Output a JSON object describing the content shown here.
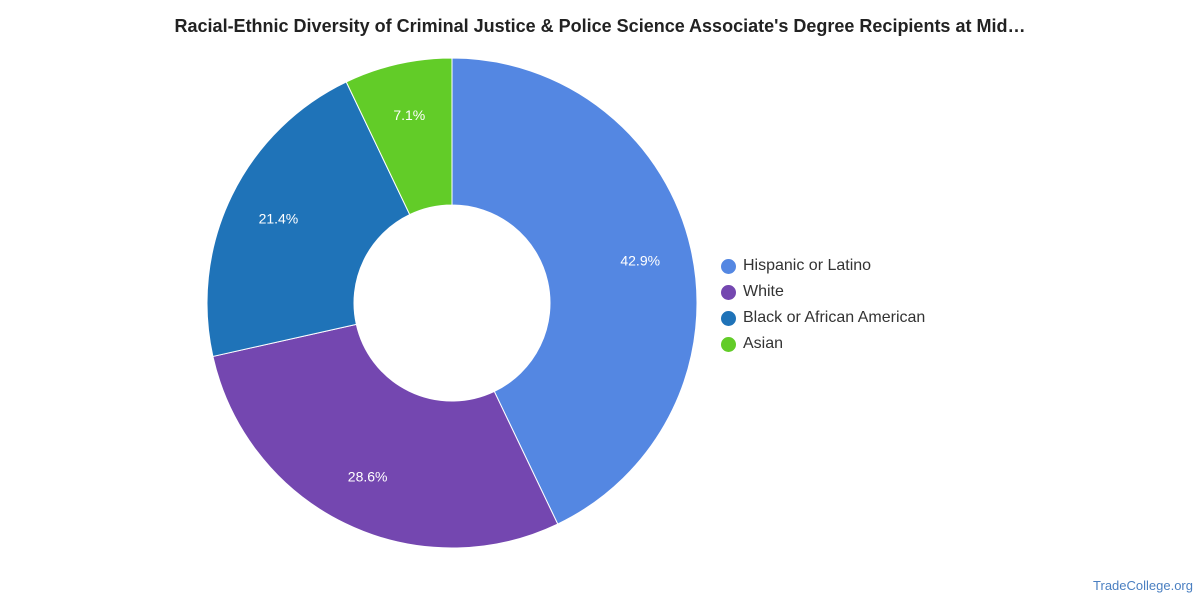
{
  "chart_data": {
    "type": "pie",
    "title": "Racial-Ethnic Diversity of Criminal Justice & Police Science Associate's Degree Recipients at Mid…",
    "categories": [
      "Hispanic or Latino",
      "White",
      "Black or African American",
      "Asian"
    ],
    "values": [
      42.9,
      28.6,
      21.4,
      7.1
    ],
    "data_labels": [
      "42.9%",
      "28.6%",
      "21.4%",
      "7.1%"
    ],
    "colors": [
      "#5487e2",
      "#7447b0",
      "#1f73b8",
      "#62cc28"
    ],
    "donut": true,
    "legend_position": "right"
  },
  "footer": {
    "source": "TradeCollege.org"
  }
}
